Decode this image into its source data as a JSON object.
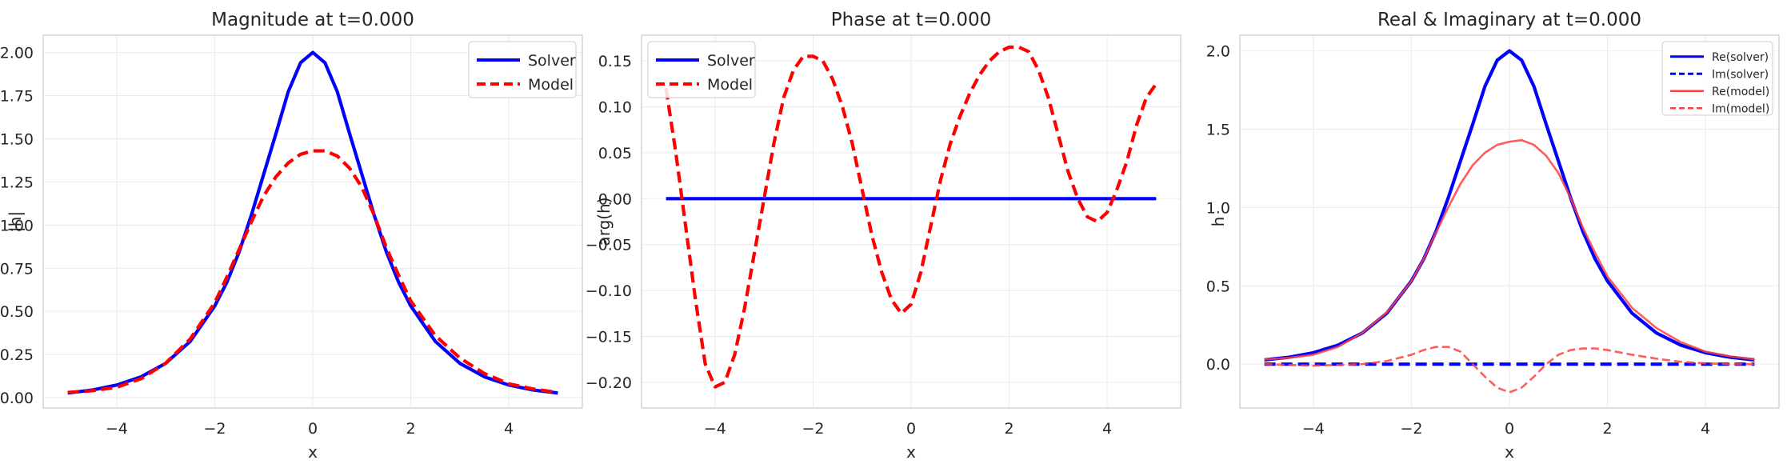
{
  "chart_data": [
    {
      "type": "line",
      "title": "Magnitude at t=0.000",
      "xlabel": "x",
      "ylabel": "|h|",
      "xlim": [
        -5.5,
        5.5
      ],
      "ylim": [
        -0.06,
        2.1
      ],
      "xticks": [
        -4,
        -2,
        0,
        2,
        4
      ],
      "xtick_labels": [
        "−4",
        "−2",
        "0",
        "2",
        "4"
      ],
      "yticks": [
        0.0,
        0.25,
        0.5,
        0.75,
        1.0,
        1.25,
        1.5,
        1.75,
        2.0
      ],
      "ytick_labels": [
        "0.00",
        "0.25",
        "0.50",
        "0.75",
        "1.00",
        "1.25",
        "1.50",
        "1.75",
        "2.00"
      ],
      "grid": true,
      "legend": "top-right",
      "series": [
        {
          "name": "Solver",
          "color": "#0000ff",
          "style": "solid",
          "x": [
            -5,
            -4.5,
            -4,
            -3.5,
            -3,
            -2.5,
            -2,
            -1.75,
            -1.5,
            -1.25,
            -1,
            -0.75,
            -0.5,
            -0.25,
            0,
            0.25,
            0.5,
            0.75,
            1,
            1.25,
            1.5,
            1.75,
            2,
            2.5,
            3,
            3.5,
            4,
            4.5,
            5
          ],
          "y": [
            0.027,
            0.044,
            0.073,
            0.121,
            0.199,
            0.326,
            0.531,
            0.67,
            0.846,
            1.06,
            1.296,
            1.531,
            1.773,
            1.94,
            2.0,
            1.94,
            1.773,
            1.531,
            1.296,
            1.06,
            0.846,
            0.67,
            0.531,
            0.326,
            0.199,
            0.121,
            0.073,
            0.044,
            0.027
          ]
        },
        {
          "name": "Model",
          "color": "#ff0000",
          "style": "dashed",
          "x": [
            -5,
            -4.5,
            -4,
            -3.5,
            -3,
            -2.5,
            -2,
            -1.75,
            -1.5,
            -1.25,
            -1,
            -0.75,
            -0.5,
            -0.25,
            0,
            0.25,
            0.5,
            0.75,
            1,
            1.25,
            1.5,
            1.75,
            2,
            2.5,
            3,
            3.5,
            4,
            4.5,
            5
          ],
          "y": [
            0.03,
            0.04,
            0.06,
            0.11,
            0.2,
            0.34,
            0.55,
            0.7,
            0.86,
            1.02,
            1.17,
            1.28,
            1.36,
            1.41,
            1.43,
            1.43,
            1.4,
            1.33,
            1.22,
            1.06,
            0.87,
            0.71,
            0.56,
            0.36,
            0.23,
            0.14,
            0.08,
            0.05,
            0.03
          ]
        }
      ]
    },
    {
      "type": "line",
      "title": "Phase at t=0.000",
      "xlabel": "x",
      "ylabel": "arg(h)",
      "xlim": [
        -5.5,
        5.5
      ],
      "ylim": [
        -0.228,
        0.178
      ],
      "xticks": [
        -4,
        -2,
        0,
        2,
        4
      ],
      "xtick_labels": [
        "−4",
        "−2",
        "0",
        "2",
        "4"
      ],
      "yticks": [
        -0.2,
        -0.15,
        -0.1,
        -0.05,
        0.0,
        0.05,
        0.1,
        0.15
      ],
      "ytick_labels": [
        "−0.20",
        "−0.15",
        "−0.10",
        "−0.05",
        "0.00",
        "0.05",
        "0.10",
        "0.15"
      ],
      "grid": true,
      "legend": "top-left",
      "series": [
        {
          "name": "Solver",
          "color": "#0000ff",
          "style": "solid",
          "x": [
            -5,
            5
          ],
          "y": [
            0.0,
            0.0
          ]
        },
        {
          "name": "Model",
          "color": "#ff0000",
          "style": "dashed",
          "x": [
            -5,
            -4.8,
            -4.6,
            -4.4,
            -4.2,
            -4.0,
            -3.8,
            -3.6,
            -3.4,
            -3.2,
            -3.0,
            -2.8,
            -2.6,
            -2.4,
            -2.2,
            -2.0,
            -1.8,
            -1.6,
            -1.4,
            -1.2,
            -1.0,
            -0.8,
            -0.6,
            -0.4,
            -0.2,
            0.0,
            0.2,
            0.4,
            0.6,
            0.8,
            1.0,
            1.2,
            1.4,
            1.6,
            1.8,
            2.0,
            2.2,
            2.4,
            2.6,
            2.8,
            3.0,
            3.2,
            3.4,
            3.6,
            3.8,
            4.0,
            4.2,
            4.4,
            4.6,
            4.8,
            5.0
          ],
          "y": [
            0.12,
            0.05,
            -0.03,
            -0.11,
            -0.18,
            -0.205,
            -0.2,
            -0.17,
            -0.12,
            -0.06,
            0.0,
            0.06,
            0.11,
            0.14,
            0.155,
            0.155,
            0.15,
            0.13,
            0.1,
            0.06,
            0.01,
            -0.04,
            -0.08,
            -0.11,
            -0.125,
            -0.115,
            -0.08,
            -0.03,
            0.02,
            0.06,
            0.09,
            0.115,
            0.135,
            0.15,
            0.16,
            0.165,
            0.165,
            0.16,
            0.14,
            0.11,
            0.07,
            0.03,
            0.0,
            -0.02,
            -0.025,
            -0.015,
            0.01,
            0.04,
            0.08,
            0.11,
            0.125
          ]
        }
      ]
    },
    {
      "type": "line",
      "title": "Real & Imaginary at t=0.000",
      "xlabel": "x",
      "ylabel": "h",
      "xlim": [
        -5.5,
        5.5
      ],
      "ylim": [
        -0.28,
        2.1
      ],
      "xticks": [
        -4,
        -2,
        0,
        2,
        4
      ],
      "xtick_labels": [
        "−4",
        "−2",
        "0",
        "2",
        "4"
      ],
      "yticks": [
        0.0,
        0.5,
        1.0,
        1.5,
        2.0
      ],
      "ytick_labels": [
        "0.0",
        "0.5",
        "1.0",
        "1.5",
        "2.0"
      ],
      "grid": true,
      "legend": "top-right",
      "series": [
        {
          "name": "Re(solver)",
          "color": "#0000ff",
          "style": "solid",
          "x": [
            -5,
            -4.5,
            -4,
            -3.5,
            -3,
            -2.5,
            -2,
            -1.75,
            -1.5,
            -1.25,
            -1,
            -0.75,
            -0.5,
            -0.25,
            0,
            0.25,
            0.5,
            0.75,
            1,
            1.25,
            1.5,
            1.75,
            2,
            2.5,
            3,
            3.5,
            4,
            4.5,
            5
          ],
          "y": [
            0.027,
            0.044,
            0.073,
            0.121,
            0.199,
            0.326,
            0.531,
            0.67,
            0.846,
            1.06,
            1.296,
            1.531,
            1.773,
            1.94,
            2.0,
            1.94,
            1.773,
            1.531,
            1.296,
            1.06,
            0.846,
            0.67,
            0.531,
            0.326,
            0.199,
            0.121,
            0.073,
            0.044,
            0.027
          ]
        },
        {
          "name": "Im(solver)",
          "color": "#0000ff",
          "style": "dashed",
          "x": [
            -5,
            5
          ],
          "y": [
            0.0,
            0.0
          ]
        },
        {
          "name": "Re(model)",
          "color": "#ff4040",
          "style": "solid",
          "x": [
            -5,
            -4.5,
            -4,
            -3.5,
            -3,
            -2.5,
            -2,
            -1.75,
            -1.5,
            -1.25,
            -1,
            -0.75,
            -0.5,
            -0.25,
            0,
            0.25,
            0.5,
            0.75,
            1,
            1.25,
            1.5,
            1.75,
            2,
            2.5,
            3,
            3.5,
            4,
            4.5,
            5
          ],
          "y": [
            0.03,
            0.04,
            0.06,
            0.11,
            0.2,
            0.33,
            0.53,
            0.67,
            0.84,
            1.0,
            1.15,
            1.27,
            1.35,
            1.4,
            1.42,
            1.43,
            1.4,
            1.33,
            1.22,
            1.06,
            0.87,
            0.71,
            0.56,
            0.36,
            0.23,
            0.14,
            0.08,
            0.05,
            0.03
          ]
        },
        {
          "name": "Im(model)",
          "color": "#ff4040",
          "style": "dashed",
          "x": [
            -5,
            -4.5,
            -4,
            -3.5,
            -3,
            -2.5,
            -2,
            -1.75,
            -1.5,
            -1.25,
            -1,
            -0.75,
            -0.5,
            -0.25,
            0,
            0.25,
            0.5,
            0.75,
            1,
            1.25,
            1.5,
            1.75,
            2,
            2.5,
            3,
            3.5,
            4,
            4.5,
            5
          ],
          "y": [
            0.0,
            -0.005,
            -0.01,
            -0.005,
            0.0,
            0.02,
            0.06,
            0.09,
            0.11,
            0.11,
            0.08,
            0.0,
            -0.08,
            -0.15,
            -0.18,
            -0.15,
            -0.08,
            0.0,
            0.06,
            0.09,
            0.1,
            0.1,
            0.09,
            0.06,
            0.035,
            0.015,
            0.005,
            0.0,
            0.0
          ]
        }
      ]
    }
  ]
}
